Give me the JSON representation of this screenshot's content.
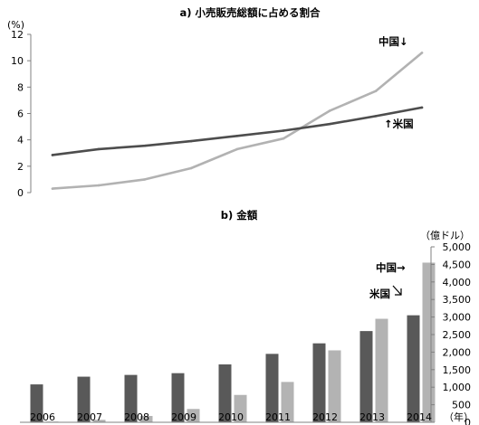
{
  "chart_data": [
    {
      "type": "line",
      "title": "a)  小売販売総額に占める割合",
      "ylabel": "(%)",
      "ylim": [
        0,
        12
      ],
      "yticks": [
        "0",
        "2",
        "4",
        "6",
        "8",
        "10",
        "12"
      ],
      "grid": false,
      "x": [
        2006,
        2007,
        2008,
        2009,
        2010,
        2011,
        2012,
        2013,
        2014
      ],
      "series": [
        {
          "name": "中国",
          "label": "中国↓",
          "color": "#b2b2b2",
          "values": [
            0.3,
            0.55,
            1.0,
            1.85,
            3.3,
            4.1,
            6.2,
            7.7,
            10.6
          ]
        },
        {
          "name": "米国",
          "label": "↑米国",
          "color": "#4d4d4d",
          "values": [
            2.85,
            3.3,
            3.55,
            3.9,
            4.3,
            4.7,
            5.2,
            5.8,
            6.45
          ]
        }
      ]
    },
    {
      "type": "bar",
      "title": "b)  金額",
      "ylabel": "（億ドル）",
      "xlabel": "（年）",
      "ylim": [
        0,
        5000
      ],
      "yticks": [
        "0",
        "500",
        "1,000",
        "1,500",
        "2,000",
        "2,500",
        "3,000",
        "3,500",
        "4,000",
        "4,500",
        "5,000"
      ],
      "grid": false,
      "categories": [
        "2006",
        "2007",
        "2008",
        "2009",
        "2010",
        "2011",
        "2012",
        "2013",
        "2014"
      ],
      "series": [
        {
          "name": "米国",
          "label": "米国",
          "color": "#595959",
          "values": [
            1080,
            1300,
            1350,
            1400,
            1650,
            1950,
            2250,
            2600,
            3050
          ]
        },
        {
          "name": "中国",
          "label": "中国→",
          "color": "#b3b3b3",
          "values": [
            20,
            70,
            180,
            380,
            780,
            1150,
            2050,
            2950,
            4550
          ]
        }
      ]
    }
  ]
}
